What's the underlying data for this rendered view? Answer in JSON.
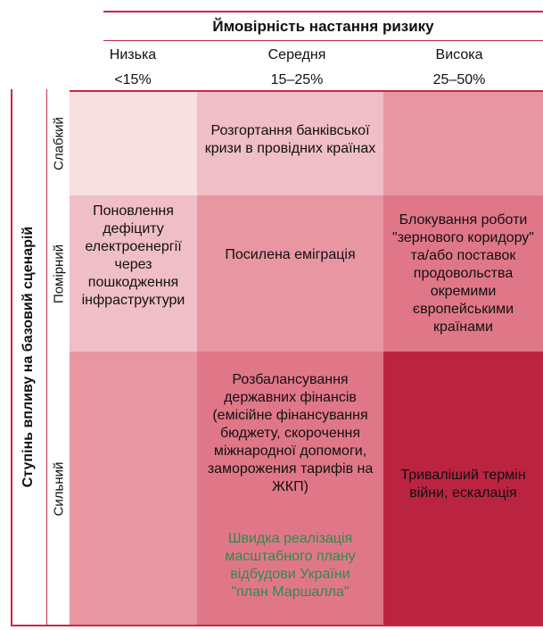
{
  "header": {
    "title": "Ймовірність настання ризику",
    "columns": [
      {
        "label": "Низька",
        "range": "<15%"
      },
      {
        "label": "Середня",
        "range": "15–25%"
      },
      {
        "label": "Висока",
        "range": "25–50%"
      }
    ]
  },
  "side": {
    "title": "Ступінь впливу на базовий сценарій",
    "rows": [
      "Слабкий",
      "Помірний",
      "Сильний"
    ]
  },
  "cells": {
    "weak_medium": "Розгортання банківської кризи в провідних країнах",
    "moderate_low": "Поновлення дефіциту електроенергії через пошкодження інфраструктури",
    "moderate_medium": "Посилена еміграція",
    "moderate_high": "Блокування роботи \"зернового коридору\" та/або поставок продовольства окремими європейськими країнами",
    "strong_medium": "Розбалансування державних фінансів (емісійне фінансування бюджету, скорочення міжнародної допомоги, заморожения тарифів на ЖКП)",
    "strong_medium_positive": "Швидка реалізація масштабного плану відбудови України \"план Маршалла\"",
    "strong_high": "Триваліший термін війни, ескалація"
  },
  "colors": {
    "accent_line": "#c6284a",
    "green_text": "#2f8a4c",
    "weak_low": "#f7dfe2",
    "weak_medium": "#f0bec6",
    "weak_high": "#e996a3",
    "moderate_low": "#f0bec6",
    "moderate_medium": "#e996a3",
    "moderate_high": "#e07788",
    "strong_low": "#e996a3",
    "strong_medium": "#e07788",
    "strong_high": "#bb2440"
  }
}
